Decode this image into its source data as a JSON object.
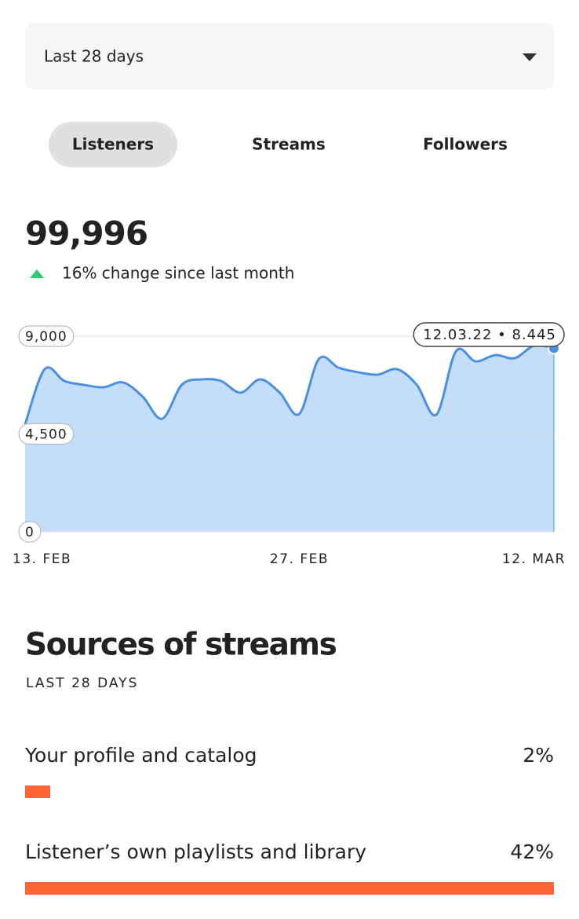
{
  "period_select": "Last 28 days",
  "tabs": [
    {
      "label": "Listeners",
      "active": true
    },
    {
      "label": "Streams",
      "active": false
    },
    {
      "label": "Followers",
      "active": false
    }
  ],
  "metric": {
    "value": "99,996",
    "change": "16% change since last month"
  },
  "chart_data": {
    "type": "area",
    "categories": [
      "13. FEB",
      null,
      null,
      null,
      null,
      null,
      null,
      null,
      null,
      null,
      null,
      null,
      null,
      null,
      "27. FEB",
      null,
      null,
      null,
      null,
      null,
      null,
      null,
      null,
      null,
      null,
      null,
      null,
      "12. MAR"
    ],
    "values": [
      4950,
      7480,
      6940,
      6760,
      6650,
      6870,
      6220,
      5200,
      6760,
      7010,
      6940,
      6400,
      7010,
      6400,
      5420,
      7950,
      7550,
      7340,
      7230,
      7480,
      6760,
      5390,
      8310,
      7840,
      8130,
      7990,
      8570,
      8445
    ],
    "color": "#4a90e2",
    "fill": "#c4ddf8",
    "ylim": [
      0,
      9000
    ],
    "yticks": [
      0,
      {
        "value": 4500,
        "label": "4,500"
      },
      {
        "value": 9000,
        "label": "9,000"
      }
    ],
    "grid": true,
    "tooltip": "12.03.22 • 8.445"
  },
  "sources": {
    "title": "Sources of streams",
    "subtitle": "LAST 28 DAYS",
    "color": "#ff6437",
    "items": [
      {
        "label": "Your profile and catalog",
        "value": 2,
        "value_label": "2%"
      },
      {
        "label": "Listener’s own playlists and library",
        "value": 42,
        "value_label": "42%"
      }
    ]
  }
}
